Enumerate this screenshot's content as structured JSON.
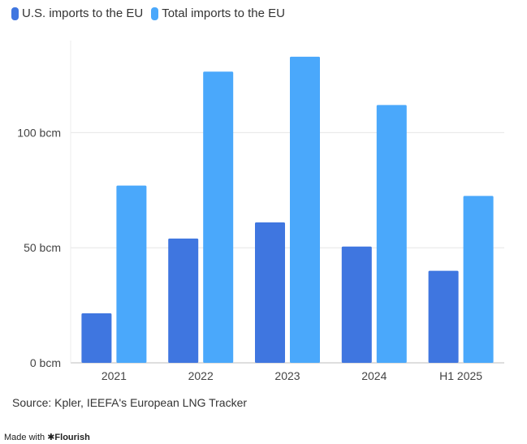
{
  "chart_data": {
    "type": "bar",
    "categories": [
      "2021",
      "2022",
      "2023",
      "2024",
      "H1 2025"
    ],
    "series": [
      {
        "name": "U.S. imports to the EU",
        "color": "#3f76e0",
        "values": [
          21.5,
          54,
          61,
          50.5,
          40
        ]
      },
      {
        "name": "Total imports to the EU",
        "color": "#4aa8fb",
        "values": [
          77,
          126.5,
          133,
          112,
          72.5
        ]
      }
    ],
    "y_ticks": [
      {
        "value": 0,
        "label": "0 bcm"
      },
      {
        "value": 50,
        "label": "50 bcm"
      },
      {
        "value": 100,
        "label": "100 bcm"
      }
    ],
    "ylim": [
      0,
      140
    ],
    "title": "",
    "xlabel": "",
    "ylabel": "",
    "grid": true,
    "legend_position": "top-left"
  },
  "source": "Source: Kpler, IEEFA's European LNG Tracker",
  "credit": {
    "prefix": "Made with ",
    "glyph": "✱",
    "brand": "Flourish"
  }
}
